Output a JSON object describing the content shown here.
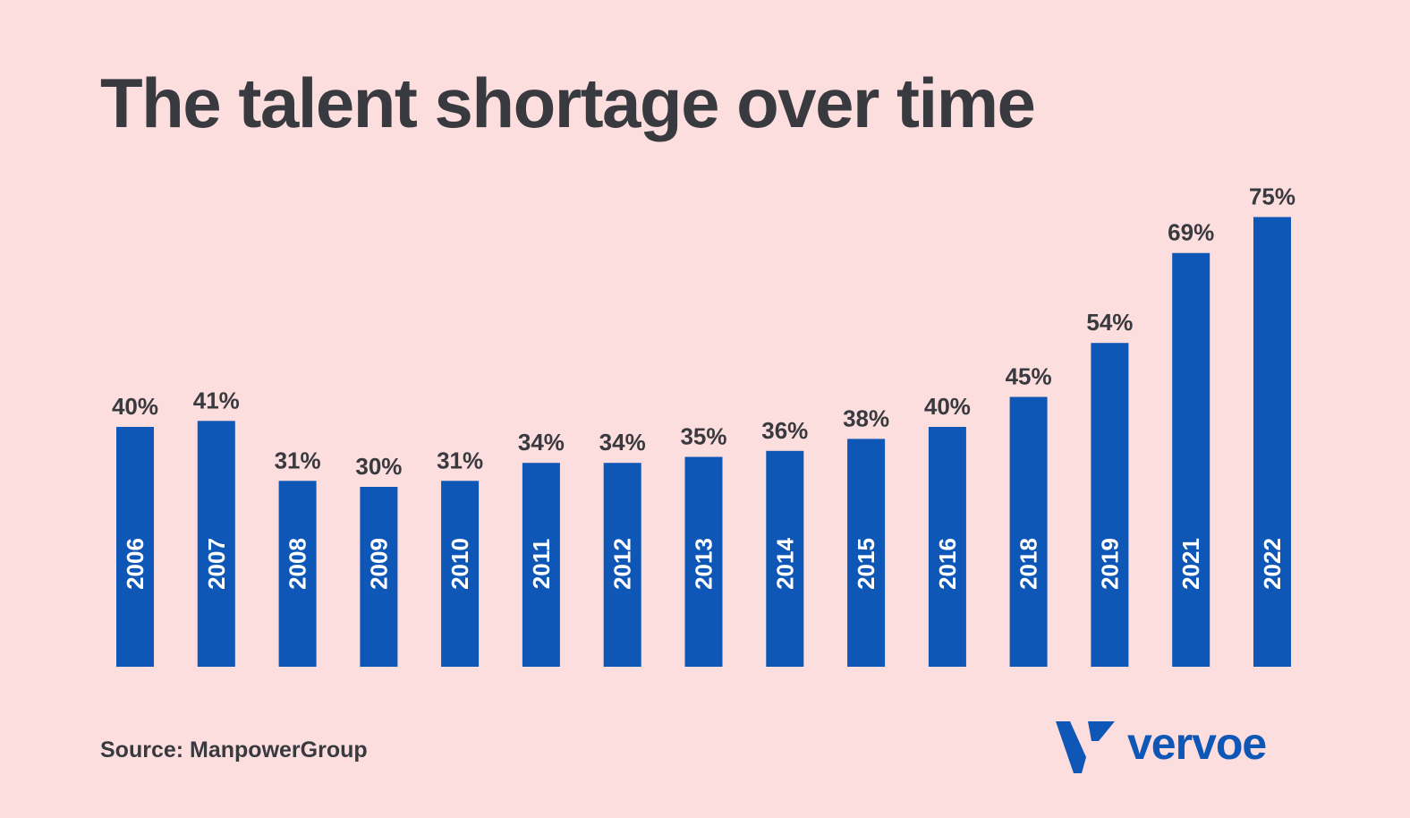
{
  "title": "The talent shortage over time",
  "source": "Source: ManpowerGroup",
  "logo_text": "vervoe",
  "colors": {
    "background": "#FDDEDE",
    "bar": "#0F57B7",
    "text": "#383A3F",
    "bar_label": "#FFFFFF"
  },
  "chart_data": {
    "type": "bar",
    "title": "The talent shortage over time",
    "categories": [
      "2006",
      "2007",
      "2008",
      "2009",
      "2010",
      "2011",
      "2012",
      "2013",
      "2014",
      "2015",
      "2016",
      "2018",
      "2019",
      "2021",
      "2022"
    ],
    "values": [
      40,
      41,
      31,
      30,
      31,
      34,
      34,
      35,
      36,
      38,
      40,
      45,
      54,
      69,
      75
    ],
    "value_labels": [
      "40%",
      "41%",
      "31%",
      "30%",
      "31%",
      "34%",
      "34%",
      "35%",
      "36%",
      "38%",
      "40%",
      "45%",
      "54%",
      "69%",
      "75%"
    ],
    "value_unit": "%",
    "xlabel": "",
    "ylabel": "",
    "ylim": [
      0,
      80
    ],
    "grid": false,
    "legend": "none",
    "category_label_position": "inside-bar-vertical"
  }
}
